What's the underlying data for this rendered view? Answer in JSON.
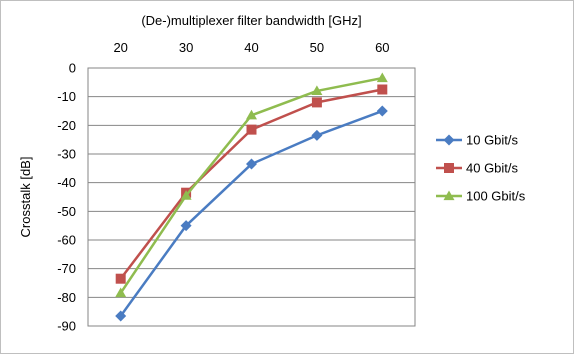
{
  "chart_data": {
    "type": "line",
    "title": "",
    "xlabel": "(De-)multiplexer filter bandwidth [GHz]",
    "ylabel": "Crosstalk [dB]",
    "x": [
      20,
      30,
      40,
      50,
      60
    ],
    "xlim": [
      15,
      65
    ],
    "xticks": [
      "20",
      "30",
      "40",
      "50",
      "60"
    ],
    "ylim": [
      -90,
      0
    ],
    "yticks": [
      "0",
      "-10",
      "-20",
      "-30",
      "-40",
      "-50",
      "-60",
      "-70",
      "-80",
      "-90"
    ],
    "grid": "horizontal",
    "legend_position": "right",
    "x_axis_position": "top",
    "series": [
      {
        "name": "10 Gbit/s",
        "color": "#4a7cc2",
        "marker": "diamond",
        "values": [
          -86.5,
          -55,
          -33.5,
          -23.5,
          -15
        ]
      },
      {
        "name": "40 Gbit/s",
        "color": "#c0504d",
        "marker": "square",
        "values": [
          -73.5,
          -43.5,
          -21.5,
          -12,
          -7.5
        ]
      },
      {
        "name": "100 Gbit/s",
        "color": "#8fbc4f",
        "marker": "triangle",
        "values": [
          -78.5,
          -44.5,
          -16.5,
          -8,
          -3.5
        ]
      }
    ]
  }
}
